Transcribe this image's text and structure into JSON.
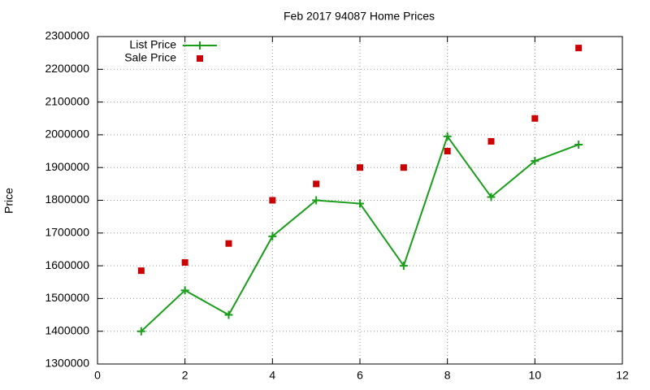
{
  "chart_data": {
    "type": "line",
    "title": "Feb 2017 94087 Home Prices",
    "y_label": "Price",
    "x": [
      1,
      2,
      3,
      4,
      5,
      6,
      7,
      8,
      9,
      10,
      11
    ],
    "series": [
      {
        "name": "List Price",
        "color": "#1a9e1a",
        "style": "linespoints",
        "values": [
          1400000,
          1525000,
          1450000,
          1690000,
          1800000,
          1790000,
          1600000,
          1995000,
          1810000,
          1920000,
          1970000
        ]
      },
      {
        "name": "Sale Price",
        "color": "#cc0000",
        "style": "points",
        "values": [
          1585000,
          1610000,
          1668000,
          1800000,
          1850000,
          1900000,
          1900000,
          1950000,
          1980000,
          2050000,
          2265000
        ]
      }
    ],
    "xlim": [
      0,
      12
    ],
    "xticks": [
      0,
      2,
      4,
      6,
      8,
      10,
      12
    ],
    "ylim": [
      1300000,
      2300000
    ],
    "yticks": [
      1300000,
      1400000,
      1500000,
      1600000,
      1700000,
      1800000,
      1900000,
      2000000,
      2100000,
      2200000,
      2300000
    ],
    "grid": true,
    "legend": "top-left"
  }
}
